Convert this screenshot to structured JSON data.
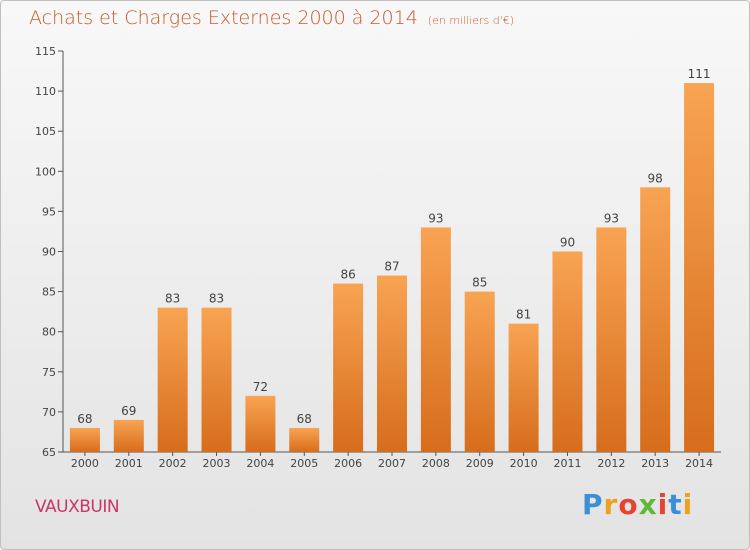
{
  "chart_data": {
    "type": "bar",
    "title": "Achats et Charges Externes 2000 à 2014",
    "subtitle": "(en milliers d'€)",
    "xlabel": "",
    "ylabel": "",
    "categories": [
      "2000",
      "2001",
      "2002",
      "2003",
      "2004",
      "2005",
      "2006",
      "2007",
      "2008",
      "2009",
      "2010",
      "2011",
      "2012",
      "2013",
      "2014"
    ],
    "values": [
      68,
      69,
      83,
      83,
      72,
      68,
      86,
      87,
      93,
      85,
      81,
      90,
      93,
      98,
      111
    ],
    "ylim": [
      65,
      115
    ],
    "yticks": [
      65,
      70,
      75,
      80,
      85,
      90,
      95,
      100,
      105,
      110,
      115
    ],
    "grid": false,
    "bar_color": "#f0923a"
  },
  "commune": "VAUXBUIN",
  "logo": {
    "letters": [
      "P",
      "r",
      "o",
      "x",
      "i",
      "t",
      "i"
    ],
    "colors": [
      "#3b8fd6",
      "#f0a020",
      "#e8432e",
      "#5fb936",
      "#e8432e",
      "#3b8fd6",
      "#f0a020"
    ]
  }
}
